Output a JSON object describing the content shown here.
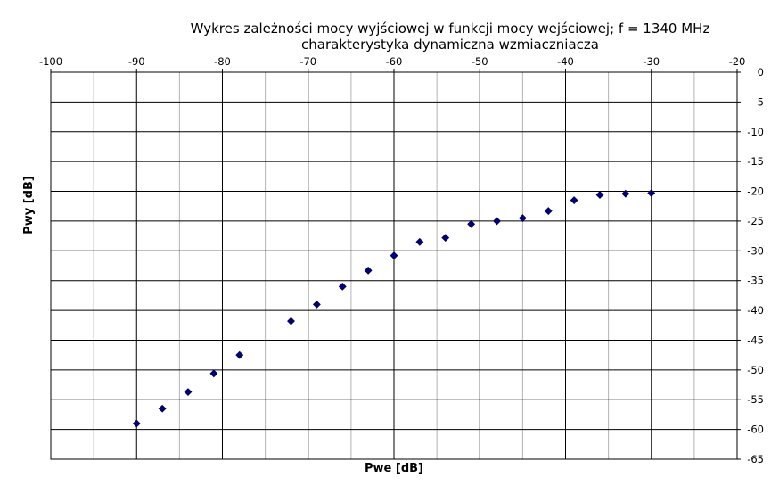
{
  "chart_data": {
    "type": "scatter",
    "title": "Wykres zależności mocy wyjściowej w funkcji mocy wejściowej; f = 1340 MHz",
    "subtitle": "charakterystyka dynamiczna wzmiaczniacza",
    "xlabel": "Pwe [dB]",
    "ylabel": "Pwy [dB]",
    "xlim": [
      -100,
      -20
    ],
    "ylim": [
      -65,
      0
    ],
    "x_ticks": [
      -100,
      -90,
      -80,
      -70,
      -60,
      -50,
      -40,
      -30,
      -20
    ],
    "y_ticks": [
      0,
      -5,
      -10,
      -15,
      -20,
      -25,
      -30,
      -35,
      -40,
      -45,
      -50,
      -55,
      -60,
      -65
    ],
    "x_tick_position": "top",
    "y_tick_position": "right",
    "grid": true,
    "marker_color": "#000080",
    "series": [
      {
        "points": [
          {
            "x": -90,
            "y": -59.0
          },
          {
            "x": -87,
            "y": -56.5
          },
          {
            "x": -84,
            "y": -53.7
          },
          {
            "x": -81,
            "y": -50.6
          },
          {
            "x": -78,
            "y": -47.5
          },
          {
            "x": -72,
            "y": -41.8
          },
          {
            "x": -69,
            "y": -39.0
          },
          {
            "x": -66,
            "y": -36.0
          },
          {
            "x": -63,
            "y": -33.3
          },
          {
            "x": -60,
            "y": -30.8
          },
          {
            "x": -57,
            "y": -28.5
          },
          {
            "x": -54,
            "y": -27.8
          },
          {
            "x": -51,
            "y": -25.5
          },
          {
            "x": -48,
            "y": -25.0
          },
          {
            "x": -45,
            "y": -24.5
          },
          {
            "x": -42,
            "y": -23.3
          },
          {
            "x": -39,
            "y": -21.5
          },
          {
            "x": -36,
            "y": -20.6
          },
          {
            "x": -33,
            "y": -20.4
          },
          {
            "x": -30,
            "y": -20.3
          }
        ]
      }
    ]
  }
}
